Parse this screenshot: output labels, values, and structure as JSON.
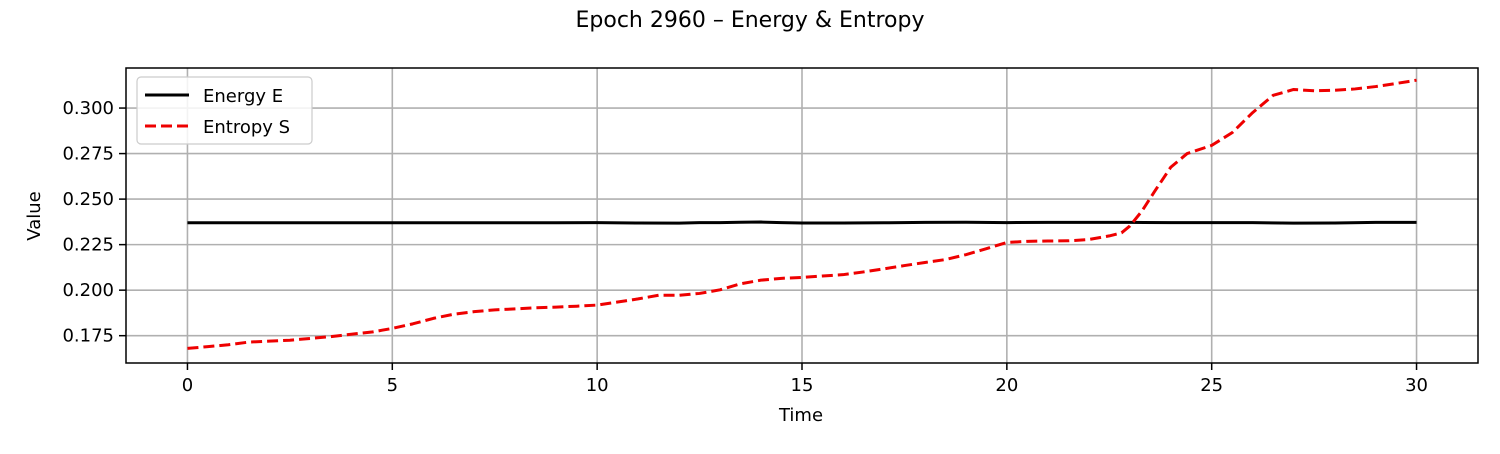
{
  "chart_data": {
    "type": "line",
    "title": "Epoch 2960 – Energy & Entropy",
    "xlabel": "Time",
    "ylabel": "Value",
    "xlim": [
      -1.5,
      31.5
    ],
    "ylim": [
      0.16,
      0.322
    ],
    "xticks": [
      0,
      5,
      10,
      15,
      20,
      25,
      30
    ],
    "xtick_labels": [
      "0",
      "5",
      "10",
      "15",
      "20",
      "25",
      "30"
    ],
    "yticks": [
      0.175,
      0.2,
      0.225,
      0.25,
      0.275,
      0.3
    ],
    "ytick_labels": [
      "0.175",
      "0.200",
      "0.225",
      "0.250",
      "0.275",
      "0.300"
    ],
    "grid": true,
    "legend_position": "top-left",
    "series": [
      {
        "name": "Energy E",
        "color": "#000000",
        "style": "solid",
        "x": [
          0,
          1,
          2,
          3,
          4,
          5,
          6,
          7,
          8,
          9,
          10,
          11,
          12,
          12.5,
          13,
          13.5,
          14,
          14.5,
          15,
          16,
          17,
          18,
          19,
          20,
          21,
          22,
          23,
          24,
          25,
          26,
          27,
          28,
          29,
          30
        ],
        "y": [
          0.237,
          0.237,
          0.237,
          0.237,
          0.237,
          0.237,
          0.237,
          0.237,
          0.237,
          0.237,
          0.2371,
          0.2369,
          0.2368,
          0.2371,
          0.2371,
          0.2373,
          0.2374,
          0.2371,
          0.2369,
          0.2369,
          0.237,
          0.2372,
          0.2373,
          0.2371,
          0.2372,
          0.2372,
          0.2372,
          0.2371,
          0.2371,
          0.2371,
          0.2368,
          0.2369,
          0.2372,
          0.2372
        ]
      },
      {
        "name": "Entropy S",
        "color": "#ee0000",
        "style": "dashed",
        "x": [
          0,
          0.5,
          1,
          1.5,
          2,
          2.5,
          3,
          3.5,
          4,
          4.5,
          5,
          5.5,
          6,
          6.5,
          7,
          7.5,
          8,
          8.5,
          9,
          9.5,
          10,
          10.5,
          11,
          11.5,
          12,
          12.5,
          13,
          13.5,
          14,
          14.5,
          15,
          15.5,
          16,
          16.5,
          17,
          17.5,
          18,
          18.5,
          19,
          19.5,
          20,
          20.5,
          21,
          21.5,
          22,
          22.5,
          22.8,
          23,
          23.3,
          23.6,
          24,
          24.4,
          25,
          25.5,
          26,
          26.5,
          27,
          27.5,
          28,
          28.5,
          29,
          29.5,
          30
        ],
        "y": [
          0.168,
          0.169,
          0.17,
          0.1715,
          0.172,
          0.1725,
          0.1735,
          0.1745,
          0.1758,
          0.177,
          0.179,
          0.1815,
          0.1845,
          0.1868,
          0.1882,
          0.1892,
          0.1897,
          0.1903,
          0.1907,
          0.1912,
          0.1918,
          0.1935,
          0.1952,
          0.1972,
          0.1972,
          0.1982,
          0.2002,
          0.2035,
          0.2055,
          0.2065,
          0.207,
          0.2078,
          0.2085,
          0.21,
          0.2117,
          0.2135,
          0.2152,
          0.2168,
          0.2195,
          0.2228,
          0.2262,
          0.2268,
          0.227,
          0.2271,
          0.2278,
          0.2298,
          0.2315,
          0.2352,
          0.2435,
          0.254,
          0.2675,
          0.275,
          0.2795,
          0.2865,
          0.2975,
          0.307,
          0.3102,
          0.3095,
          0.3098,
          0.3105,
          0.3118,
          0.3135,
          0.3153
        ]
      }
    ]
  }
}
